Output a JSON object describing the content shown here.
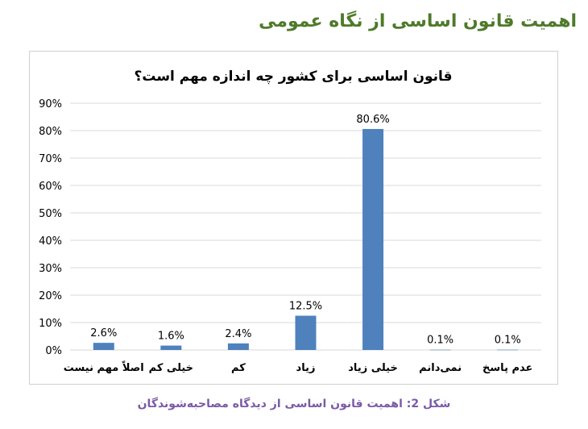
{
  "page": {
    "header_title": "اهمیت قانون اساسی از نگاه عمومی",
    "caption": "شکل 2: اهمیت قانون اساسی از دیدگاه مصاحبه‌شوندگان"
  },
  "colors": {
    "bar": "#4f81bd",
    "header": "#4e7a2a",
    "caption": "#7a5aa6",
    "grid": "#d9d9d9"
  },
  "chart_data": {
    "type": "bar",
    "title": "قانون اساسی برای کشور چه اندازه مهم است؟",
    "xlabel": "",
    "ylabel": "",
    "categories": [
      "اصلاً مهم نیست",
      "خیلی کم",
      "کم",
      "زیاد",
      "خیلی زیاد",
      "نمی‌دانم",
      "عدم پاسخ"
    ],
    "values": [
      2.6,
      1.6,
      2.4,
      12.5,
      80.6,
      0.1,
      0.1
    ],
    "data_labels": [
      "2.6%",
      "1.6%",
      "2.4%",
      "12.5%",
      "80.6%",
      "0.1%",
      "0.1%"
    ],
    "ylim": [
      0,
      90
    ],
    "y_ticks": [
      0,
      10,
      20,
      30,
      40,
      50,
      60,
      70,
      80,
      90
    ],
    "y_tick_labels": [
      "0%",
      "10%",
      "20%",
      "30%",
      "40%",
      "50%",
      "60%",
      "70%",
      "80%",
      "90%"
    ],
    "grid": true,
    "legend": "none"
  }
}
